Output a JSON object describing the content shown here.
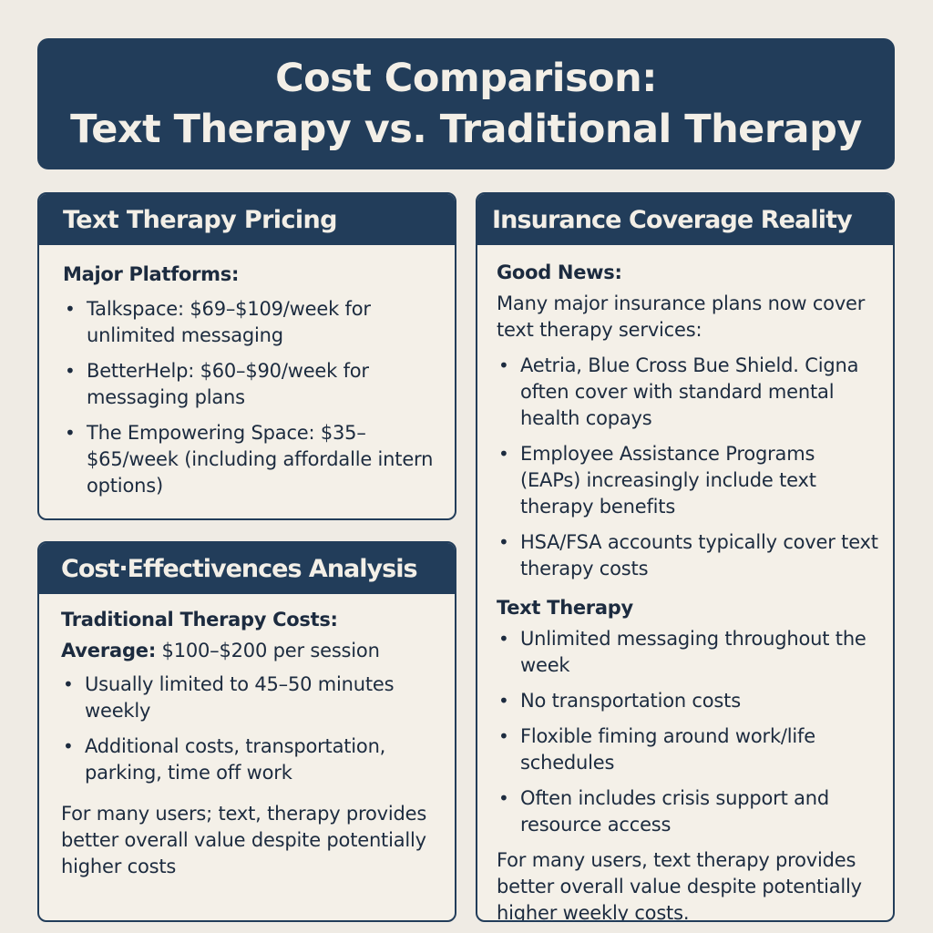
{
  "title": {
    "line1": "Cost Comparison:",
    "line2": "Text Therapy vs. Traditional Therapy"
  },
  "pricing": {
    "heading": "Text Therapy Pricing",
    "subheading": "Major Platforms:",
    "items": [
      "Talkspace: $69–$109/week for unlimited messaging",
      "BetterHelp: $60–$90/week for messaging plans",
      "The Empowering Space: $35–$65/week (including affordalle intern options)"
    ]
  },
  "analysis": {
    "heading": "Cost·Effectivences Analysis",
    "subheading": "Traditional Therapy Costs:",
    "average_label": "Average:",
    "average_value": "$100–$200 per session",
    "items": [
      "Usually limited to 45–50 minutes weekly",
      "Additional costs, transportation, parking, time off work"
    ],
    "conclusion": "For many users; text, therapy provides better  overall value despite potentially higher costs"
  },
  "insurance": {
    "heading": "Insurance Coverage Reality",
    "good_news_label": "Good News:",
    "intro": "Many major insurance plans now cover text therapy services:",
    "items": [
      "Aetria, Blue Cross Bue Shield. Cigna often cover with standard mental health copays",
      "Employee Assistance Programs (EAPs) increasingly include text therapy benefits",
      "HSA/FSA accounts typically cover text therapy costs"
    ],
    "text_therapy_label": "Text Therapy",
    "text_therapy_items": [
      "Unlimited messaging throughout the week",
      "No transportation costs",
      "Floxible fiming around work/life schedules",
      "Often includes crisis support and resource access"
    ],
    "conclusion": "For many users, text therapy provides better overall value despite potentially higher weekly costs."
  }
}
